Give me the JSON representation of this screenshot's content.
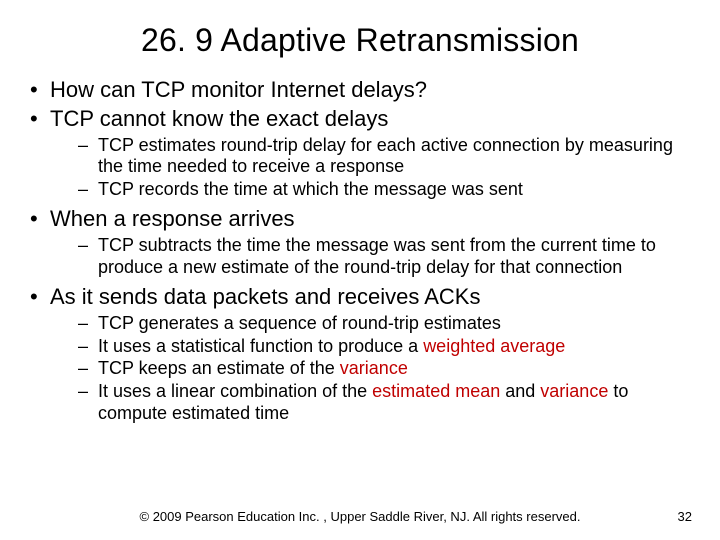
{
  "colors": {
    "background": "#ffffff",
    "text": "#000000",
    "highlight": "#c00000"
  },
  "title": "26. 9  Adaptive Retransmission",
  "bullets": [
    {
      "text": "How can TCP monitor Internet delays?",
      "sub": []
    },
    {
      "text": "TCP cannot know the exact delays",
      "sub": [
        {
          "text": "TCP estimates round-trip delay for each active connection by measuring the time needed to receive a response"
        },
        {
          "text": "TCP records the time at which the message was sent"
        }
      ]
    },
    {
      "text": "When a response arrives",
      "sub": [
        {
          "text": "TCP subtracts the time the message was sent from the current time to produce a new estimate of the round-trip delay for that connection"
        }
      ]
    },
    {
      "text": "As it sends data packets and receives ACKs",
      "sub": [
        {
          "text": "TCP generates a sequence of round-trip estimates"
        },
        {
          "pre": "It uses a statistical function to produce a ",
          "hl": "weighted average"
        },
        {
          "pre": "TCP keeps an estimate of the ",
          "hl": "variance"
        },
        {
          "pre": "It uses a linear combination of the ",
          "hl": "estimated mean",
          "mid": " and ",
          "hl2": "variance",
          "post": " to compute estimated time"
        }
      ]
    }
  ],
  "footer": {
    "copyright": "© 2009 Pearson Education Inc. , Upper Saddle River, NJ. All rights reserved.",
    "page": "32"
  }
}
